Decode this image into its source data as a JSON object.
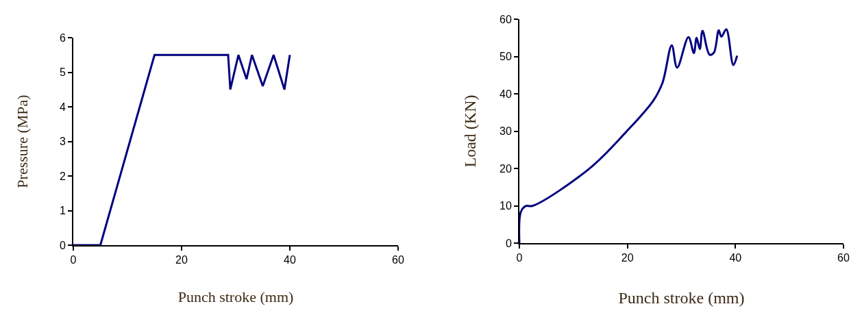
{
  "chart_data": [
    {
      "type": "line",
      "xlabel": "Punch stroke (mm)",
      "ylabel": "Pressure (MPa)",
      "xlim": [
        0,
        60
      ],
      "xticks": [
        0,
        20,
        40,
        60
      ],
      "ylim": [
        0,
        6
      ],
      "yticks": [
        0,
        1,
        2,
        3,
        4,
        5,
        6
      ],
      "grid": false,
      "marker": "none",
      "line_style": "solid",
      "series": [
        {
          "color": "#000080",
          "x": [
            0,
            5,
            15,
            28.6,
            29,
            30.5,
            32,
            33,
            35,
            37,
            39,
            40
          ],
          "values": [
            0,
            0,
            5.5,
            5.5,
            4.5,
            5.5,
            4.8,
            5.5,
            4.6,
            5.5,
            4.5,
            5.5
          ]
        }
      ]
    },
    {
      "type": "line",
      "xlabel": "Punch stroke (mm)",
      "ylabel": "Load (KN)",
      "xlim": [
        0,
        60
      ],
      "xticks": [
        0,
        20,
        40,
        60
      ],
      "ylim": [
        0,
        60
      ],
      "yticks": [
        0,
        10,
        20,
        30,
        40,
        50,
        60
      ],
      "grid": false,
      "marker": "none",
      "line_style": "solid",
      "series": [
        {
          "color": "#000080",
          "x": [
            0,
            0.25,
            1.1,
            2.5,
            12.9,
            19.7,
            24.8,
            26.5,
            28.2,
            29.2,
            31.3,
            32.3,
            32.8,
            33.4,
            33.9,
            35.2,
            36,
            36.9,
            37.4,
            38.3,
            39.6,
            40.3
          ],
          "values": [
            0,
            8.3,
            9.9,
            10,
            19.9,
            29.7,
            38.2,
            43,
            53,
            47,
            55.2,
            50.9,
            55,
            52,
            56.9,
            50.5,
            51,
            57,
            55.3,
            57.3,
            47.7,
            50.2
          ]
        }
      ]
    }
  ]
}
